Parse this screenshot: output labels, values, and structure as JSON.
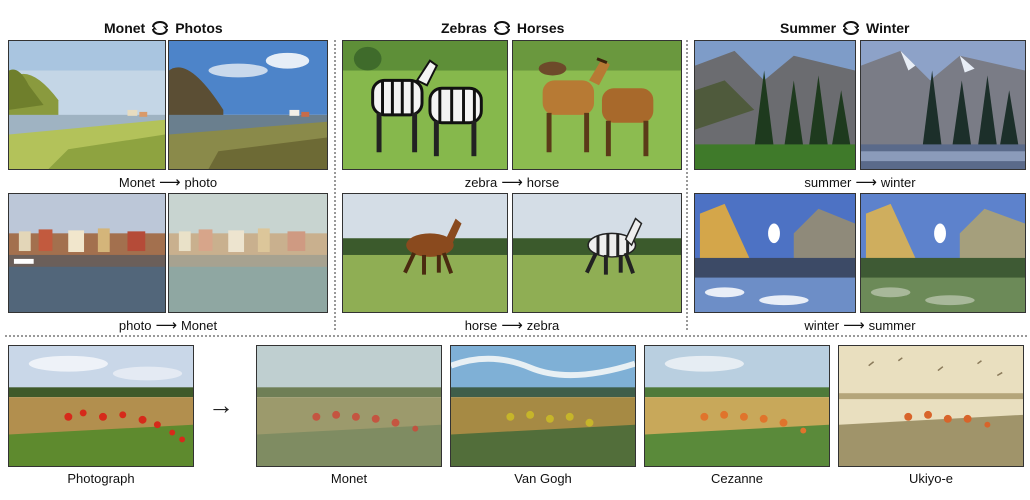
{
  "sections": [
    {
      "header": {
        "left": "Monet",
        "right": "Photos"
      },
      "row1_caption": {
        "from": "Monet",
        "to": "photo"
      },
      "row2_caption": {
        "from": "photo",
        "to": "Monet"
      }
    },
    {
      "header": {
        "left": "Zebras",
        "right": "Horses"
      },
      "row1_caption": {
        "from": "zebra",
        "to": "horse"
      },
      "row2_caption": {
        "from": "horse",
        "to": "zebra"
      }
    },
    {
      "header": {
        "left": "Summer",
        "right": "Winter"
      },
      "row1_caption": {
        "from": "summer",
        "to": "winter"
      },
      "row2_caption": {
        "from": "winter",
        "to": "summer"
      }
    }
  ],
  "bottom_row": {
    "labels": [
      "Photograph",
      "Monet",
      "Van Gogh",
      "Cezanne",
      "Ukiyo-e"
    ]
  },
  "colors": {
    "cycle_arrow": "#111111",
    "separator": "#999999",
    "poppy_red": "#d62a1a",
    "grass_green": "#6ea83a",
    "sky_blue": "#8fb4de"
  }
}
